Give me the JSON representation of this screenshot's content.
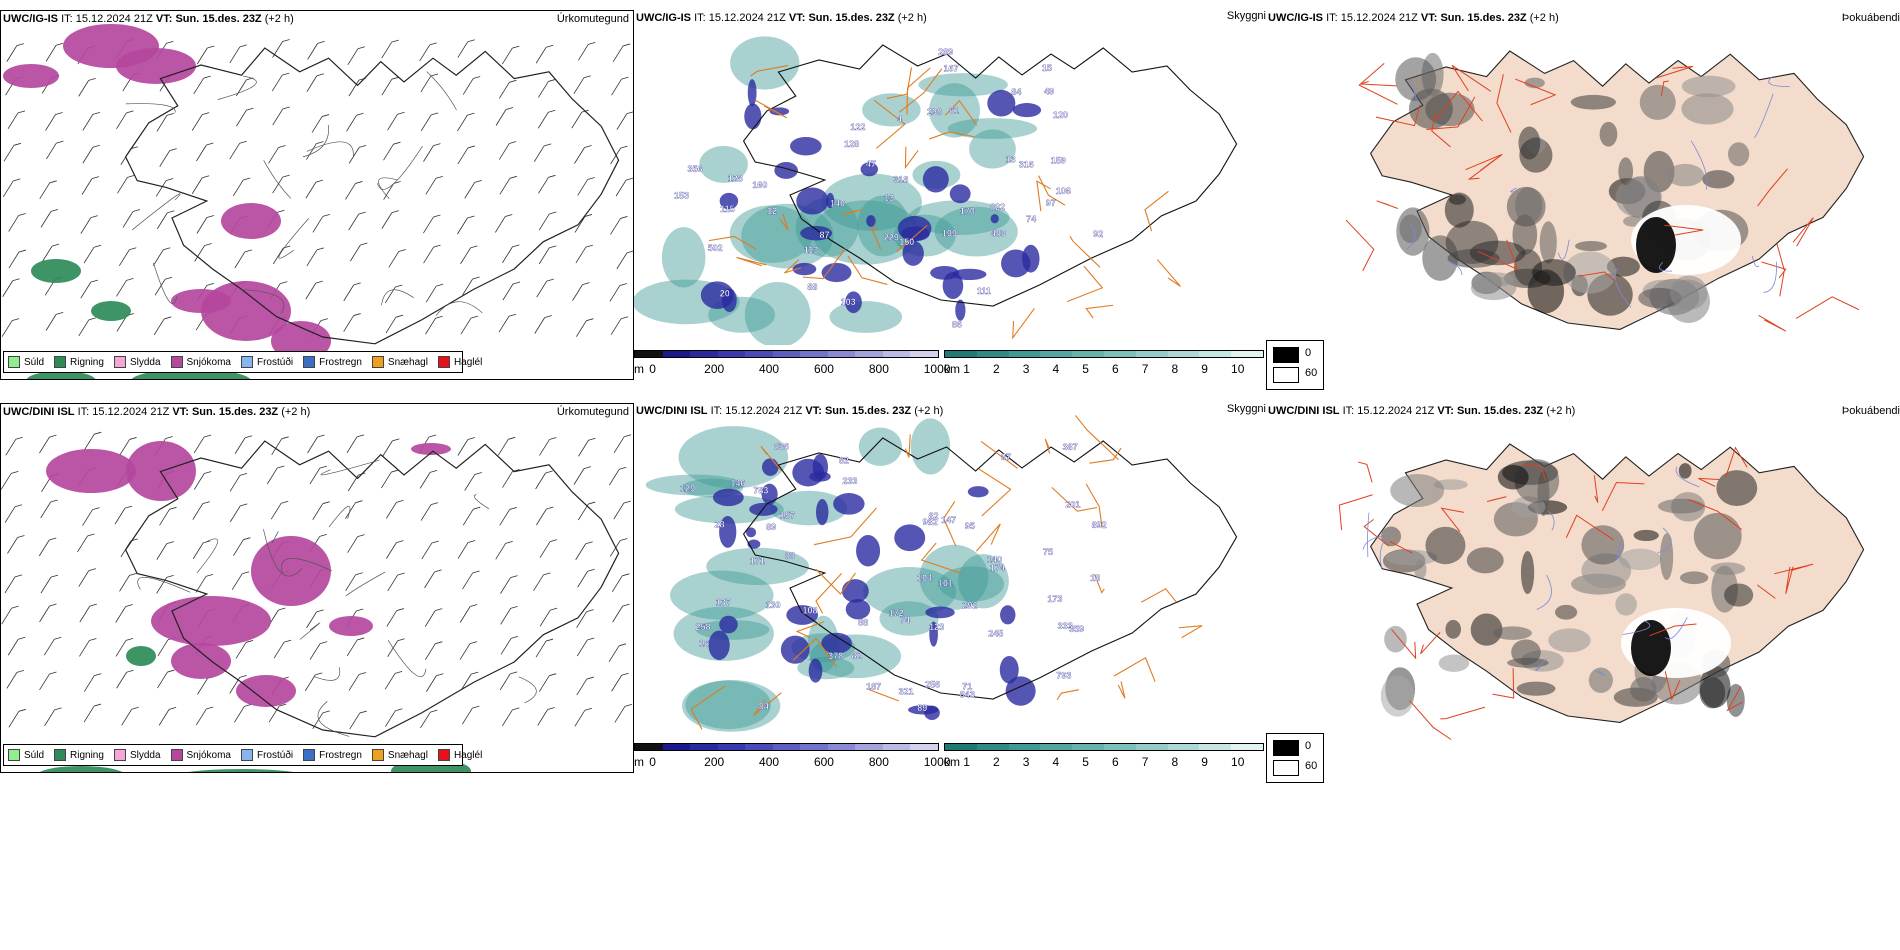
{
  "rows": [
    {
      "model": "UWC/IG-IS",
      "it_label": "IT:",
      "it_value": "15.12.2024 21Z",
      "vt_label": "VT:",
      "vt_value": "Sun. 15.des. 23Z",
      "lead": "(+2 h)",
      "spot_labels": [
        "502",
        "822",
        "318",
        "356",
        "20",
        "15",
        "4",
        "13",
        "92",
        "106",
        "128",
        "12",
        "13",
        "47",
        "49",
        "199",
        "115",
        "113",
        "61",
        "122",
        "74",
        "97",
        "111",
        "84",
        "86",
        "87",
        "150",
        "88",
        "289",
        "140",
        "160",
        "120",
        "167",
        "298",
        "229",
        "170",
        "159",
        "489",
        "316",
        "128",
        "153",
        "103"
      ]
    },
    {
      "model": "UWC/DINI ISL",
      "it_label": "IT:",
      "it_value": "15.12.2024 21Z",
      "vt_label": "VT:",
      "vt_value": "Sun. 15.des. 23Z",
      "lead": "(+2 h)",
      "spot_labels": [
        "836",
        "982",
        "892",
        "187",
        "233",
        "28",
        "87",
        "82",
        "783",
        "321",
        "18",
        "82",
        "16",
        "88",
        "843",
        "71",
        "137",
        "140",
        "245",
        "108",
        "146",
        "104",
        "82",
        "171",
        "172",
        "95",
        "130",
        "75",
        "74",
        "89",
        "129",
        "88",
        "256",
        "157",
        "84",
        "123",
        "387",
        "292",
        "359",
        "378",
        "258",
        "201",
        "793",
        "101",
        "333",
        "173",
        "174",
        "89",
        "147"
      ]
    }
  ],
  "panel_titles": {
    "precip_type": "Úrkomutegund",
    "cloud": "Skyggni",
    "fog": "Þokuábendi"
  },
  "precip_legend": [
    {
      "label": "Súld",
      "color": "#90ee90"
    },
    {
      "label": "Rigning",
      "color": "#2e8b57"
    },
    {
      "label": "Slydda",
      "color": "#f4a6d7"
    },
    {
      "label": "Snjókoma",
      "color": "#b5479e"
    },
    {
      "label": "Frostúði",
      "color": "#87b5f0"
    },
    {
      "label": "Frostregn",
      "color": "#3a6fc4"
    },
    {
      "label": "Snæhagl",
      "color": "#f0a020"
    },
    {
      "label": "Haglél",
      "color": "#e8111a"
    }
  ],
  "cloud_base_bar": {
    "unit": "m",
    "ticks": [
      "0",
      "200",
      "400",
      "600",
      "800",
      "1000"
    ],
    "colors": [
      "#111111",
      "#1a1a8c",
      "#2a2aa0",
      "#3838b0",
      "#4a4ab8",
      "#5e5ec2",
      "#7373cc",
      "#8a8ad4",
      "#a2a2dc",
      "#babae4",
      "#d2d2ee"
    ]
  },
  "visibility_bar": {
    "unit": "km",
    "ticks": [
      "1",
      "2",
      "3",
      "4",
      "5",
      "6",
      "7",
      "8",
      "9",
      "10"
    ],
    "colors": [
      "#1f7a76",
      "#2f8a86",
      "#3f9995",
      "#52a6a2",
      "#66b3ae",
      "#7cc0bc",
      "#94ccc8",
      "#acd9d5",
      "#c6e6e3",
      "#e2f3f1"
    ]
  },
  "fog_legend": [
    {
      "label": "0",
      "color": "#000000"
    },
    {
      "label": "60",
      "color": "#ffffff"
    }
  ]
}
